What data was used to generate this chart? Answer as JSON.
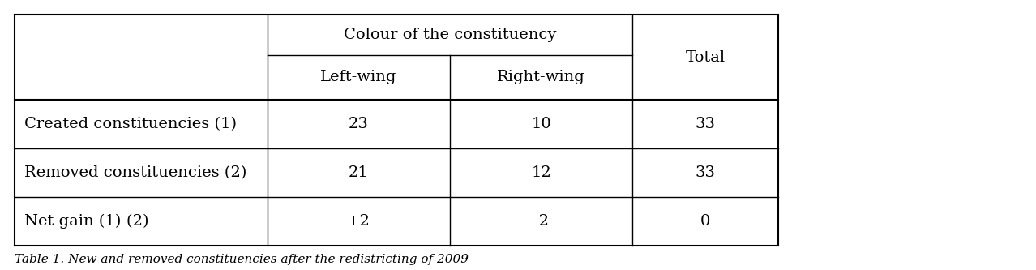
{
  "caption": "Table 1. New and removed constituencies after the redistricting of 2009",
  "col_header_top": "Colour of the constituency",
  "col_header_sub": [
    "Left-wing",
    "Right-wing"
  ],
  "col_total_header": "Total",
  "row_labels": [
    "Created constituencies (1)",
    "Removed constituencies (2)",
    "Net gain (1)-(2)"
  ],
  "data": [
    [
      "23",
      "10",
      "33"
    ],
    [
      "21",
      "12",
      "33"
    ],
    [
      "+2",
      "-2",
      "0"
    ]
  ],
  "background_color": "#ffffff",
  "line_color": "#000000",
  "text_color": "#000000",
  "font_size": 14,
  "header_font_size": 14,
  "caption_font_size": 11,
  "fig_width": 12.78,
  "fig_height": 3.33,
  "dpi": 100
}
